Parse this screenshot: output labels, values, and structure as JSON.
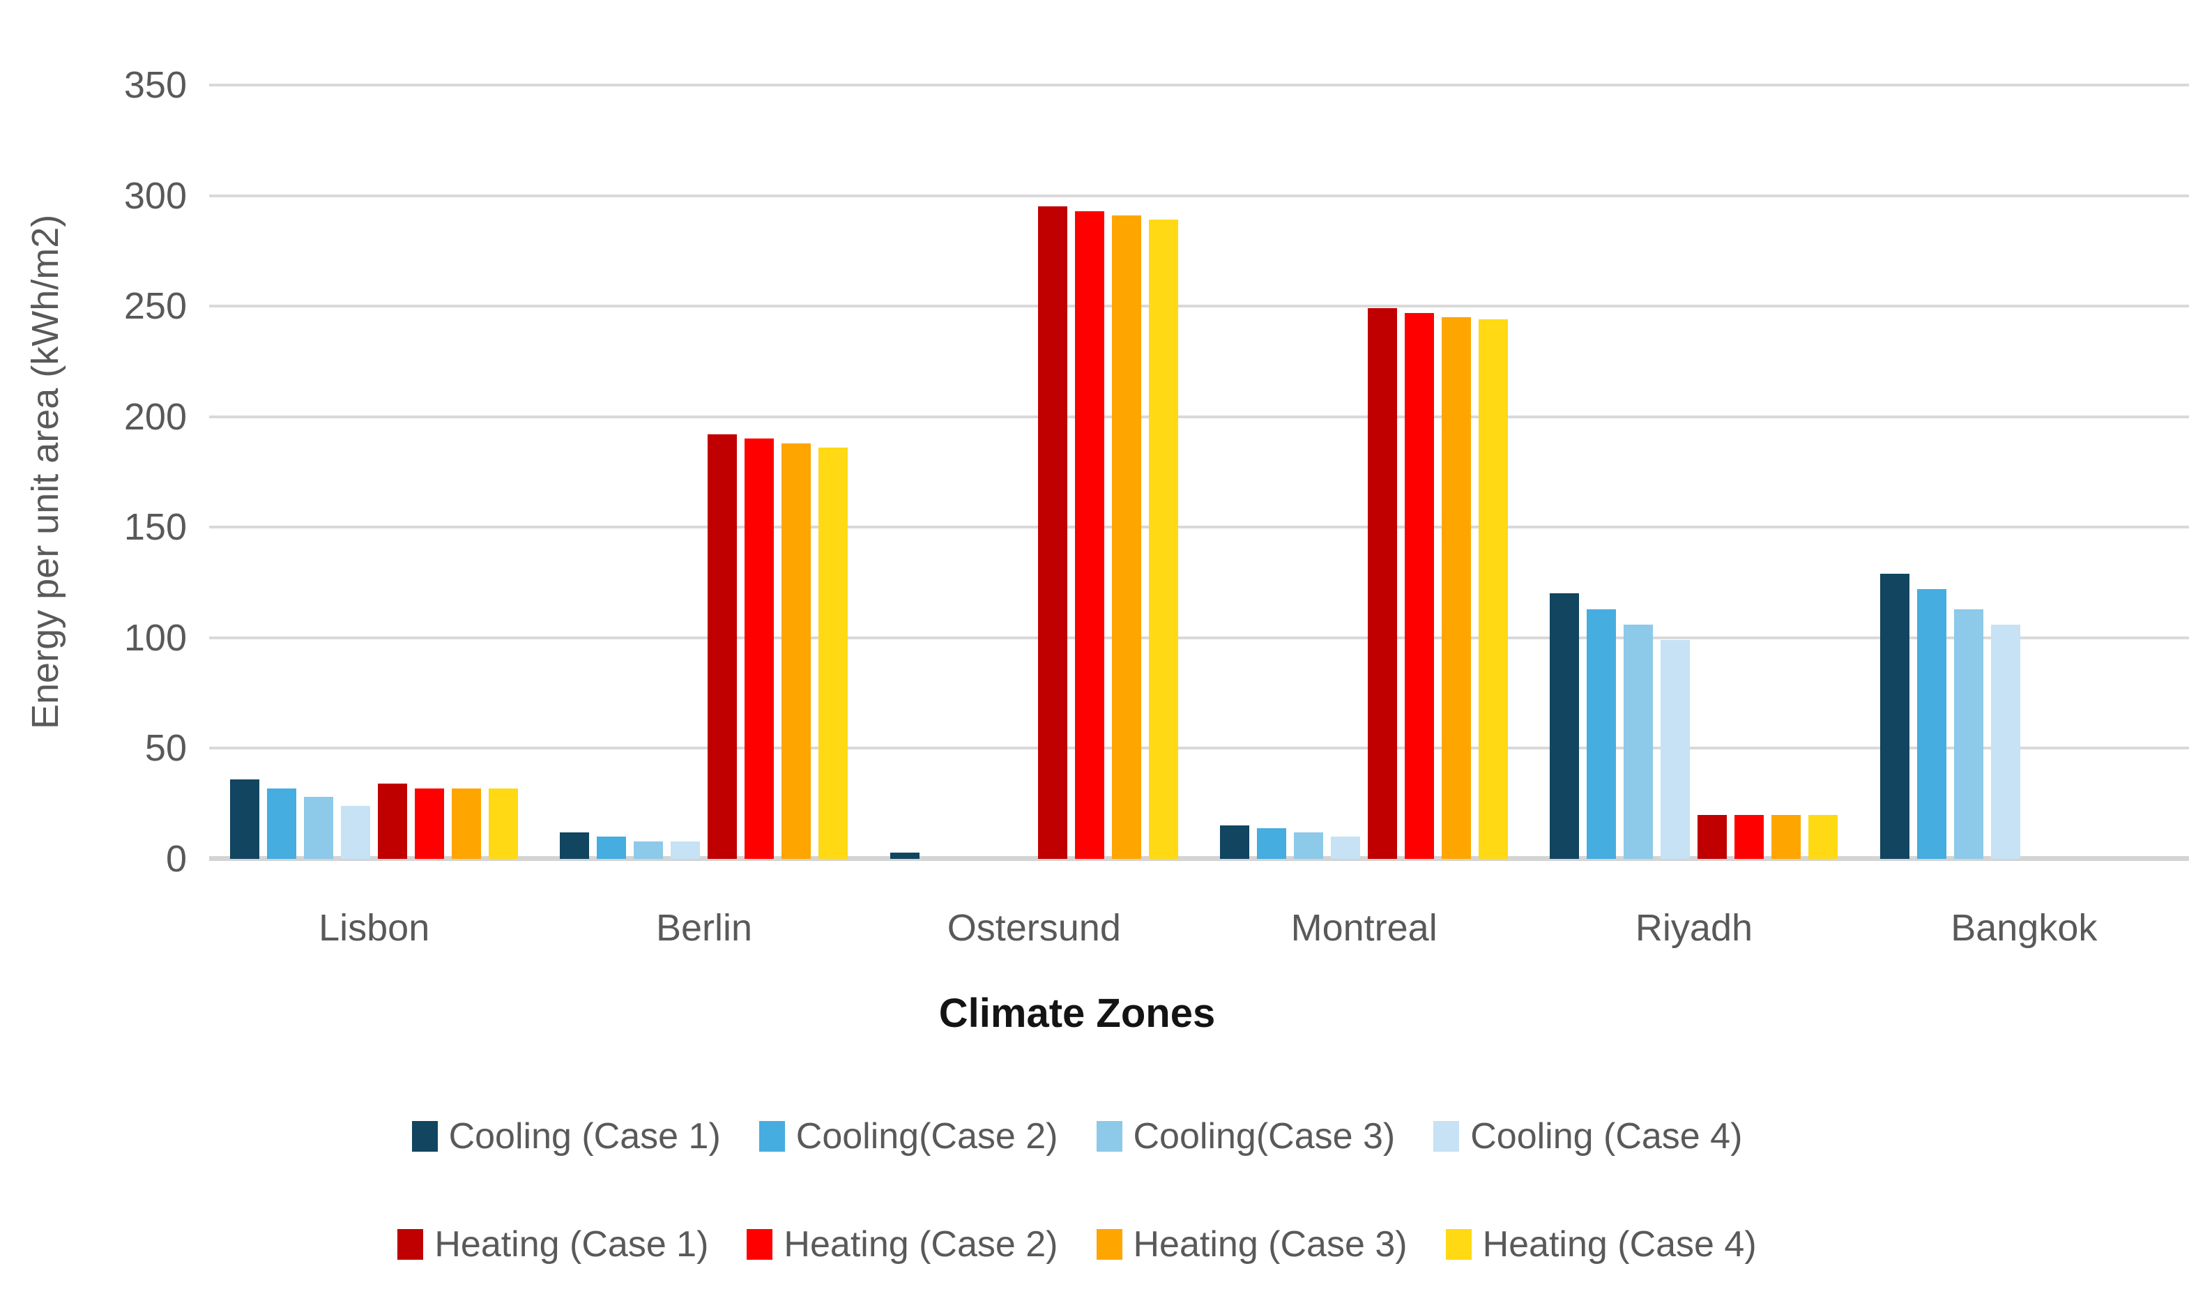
{
  "chart_data": {
    "type": "bar",
    "title": "",
    "xlabel": "Climate Zones",
    "ylabel": "Energy per unit area (kWh/m2)",
    "ylim": [
      0,
      350
    ],
    "yticks": [
      0,
      50,
      100,
      150,
      200,
      250,
      300,
      350
    ],
    "grid": true,
    "legend_position": "bottom",
    "categories": [
      "Lisbon",
      "Berlin",
      "Ostersund",
      "Montreal",
      "Riyadh",
      "Bangkok"
    ],
    "series": [
      {
        "name": "Cooling (Case 1)",
        "color": "#114560",
        "values": [
          36,
          12,
          3,
          15,
          120,
          129
        ]
      },
      {
        "name": "Cooling(Case 2)",
        "color": "#45ade0",
        "values": [
          32,
          10,
          0,
          14,
          113,
          122
        ]
      },
      {
        "name": "Cooling(Case 3)",
        "color": "#8dc9e8",
        "values": [
          28,
          8,
          0,
          12,
          106,
          113
        ]
      },
      {
        "name": "Cooling (Case 4)",
        "color": "#c6e2f4",
        "values": [
          24,
          8,
          0,
          10,
          99,
          106
        ]
      },
      {
        "name": "Heating (Case 1)",
        "color": "#c00000",
        "values": [
          34,
          192,
          295,
          249,
          20,
          0
        ]
      },
      {
        "name": "Heating (Case 2)",
        "color": "#ff0000",
        "values": [
          32,
          190,
          293,
          247,
          20,
          0
        ]
      },
      {
        "name": "Heating (Case 3)",
        "color": "#ffa500",
        "values": [
          32,
          188,
          291,
          245,
          20,
          0
        ]
      },
      {
        "name": "Heating (Case 4)",
        "color": "#ffd914",
        "values": [
          32,
          186,
          289,
          244,
          20,
          0
        ]
      }
    ],
    "legend_rows": [
      [
        0,
        1,
        2,
        3
      ],
      [
        4,
        5,
        6,
        7
      ]
    ],
    "colors": {
      "gridline": "#d9d9d9",
      "axis_line": "#d4d4d4",
      "tick_text": "#595959",
      "category_text": "#595959",
      "axis_title_text": "#595959",
      "x_title_text": "#141414",
      "background": "#ffffff"
    }
  }
}
